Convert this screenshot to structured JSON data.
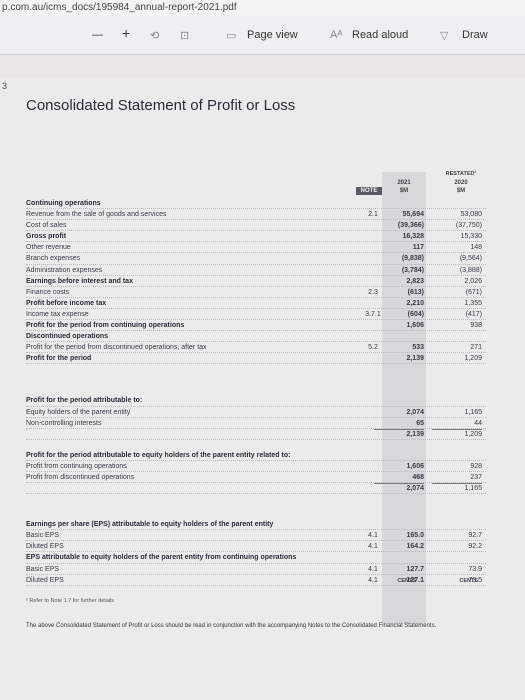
{
  "browser": {
    "url": "p.com.au/icms_docs/195984_annual-report-2021.pdf",
    "zoom_out": "—",
    "zoom_in": "+",
    "page_view": "Page view",
    "read_aloud": "Read aloud",
    "draw": "Draw"
  },
  "page_number": "3",
  "document": {
    "title": "Consolidated Statement of Profit or Loss",
    "columns": {
      "note": "NOTE",
      "current_year": "2021",
      "current_unit": "$M",
      "prior_label": "RESTATED¹",
      "prior_year": "2020",
      "prior_unit": "$M"
    },
    "sections": [
      {
        "rows": [
          {
            "kind": "heading",
            "label": "Continuing operations"
          },
          {
            "kind": "normal",
            "label": "Revenue from the sale of goods and services",
            "note": "2.1",
            "current": "55,694",
            "prior": "53,080"
          },
          {
            "kind": "normal",
            "label": "Cost of sales",
            "current": "(39,366)",
            "prior": "(37,750)"
          },
          {
            "kind": "bold",
            "label": "Gross profit",
            "current": "16,328",
            "prior": "15,330"
          },
          {
            "kind": "normal",
            "label": "Other revenue",
            "current": "117",
            "prior": "148"
          },
          {
            "kind": "normal",
            "label": "Branch expenses",
            "current": "(9,838)",
            "prior": "(9,564)"
          },
          {
            "kind": "normal",
            "label": "Administration expenses",
            "current": "(3,784)",
            "prior": "(3,888)"
          },
          {
            "kind": "bold",
            "label": "Earnings before interest and tax",
            "current": "2,823",
            "prior": "2,026"
          },
          {
            "kind": "normal",
            "label": "Finance costs",
            "note": "2.3",
            "current": "(613)",
            "prior": "(671)"
          },
          {
            "kind": "bold",
            "label": "Profit before income tax",
            "current": "2,210",
            "prior": "1,355"
          },
          {
            "kind": "normal",
            "label": "Income tax expense",
            "note": "3.7.1",
            "current": "(604)",
            "prior": "(417)"
          },
          {
            "kind": "bold",
            "label": "Profit for the period from continuing operations",
            "current": "1,606",
            "prior": "938"
          },
          {
            "kind": "heading",
            "label": "Discontinued operations"
          },
          {
            "kind": "normal",
            "label": "Profit for the period from discontinued operations, after tax",
            "note": "5.2",
            "current": "533",
            "prior": "271"
          },
          {
            "kind": "bold",
            "label": "Profit for the period",
            "current": "2,139",
            "prior": "1,209"
          }
        ]
      },
      {
        "rows": [
          {
            "kind": "heading",
            "label": "Profit for the period attributable to:"
          },
          {
            "kind": "normal",
            "label": "Equity holders of the parent entity",
            "current": "2,074",
            "prior": "1,165"
          },
          {
            "kind": "normal",
            "label": "Non-controlling interests",
            "current": "65",
            "prior": "44"
          },
          {
            "kind": "total",
            "current": "2,139",
            "prior": "1,209"
          }
        ]
      },
      {
        "rows": [
          {
            "kind": "heading",
            "label": "Profit for the period attributable to equity holders of the parent entity related to:"
          },
          {
            "kind": "normal",
            "label": "Profit from continuing operations",
            "current": "1,606",
            "prior": "928"
          },
          {
            "kind": "normal",
            "label": "Profit from discontinued operations",
            "current": "468",
            "prior": "237"
          },
          {
            "kind": "total",
            "current": "2,074",
            "prior": "1,165"
          }
        ]
      },
      {
        "units": {
          "current": "CENTS",
          "prior": "CENTS"
        },
        "rows": [
          {
            "kind": "heading",
            "label": "Earnings per share (EPS) attributable to equity holders of the parent entity"
          },
          {
            "kind": "normal",
            "label": "Basic EPS",
            "note": "4.1",
            "current": "165.0",
            "prior": "92.7"
          },
          {
            "kind": "normal",
            "label": "Diluted EPS",
            "note": "4.1",
            "current": "164.2",
            "prior": "92.2"
          },
          {
            "kind": "heading",
            "label": "EPS attributable to equity holders of the parent entity from continuing operations"
          },
          {
            "kind": "normal",
            "label": "Basic EPS",
            "note": "4.1",
            "current": "127.7",
            "prior": "73.9"
          },
          {
            "kind": "normal",
            "label": "Diluted EPS",
            "note": "4.1",
            "current": "127.1",
            "prior": "73.5"
          }
        ]
      }
    ],
    "footnote": "¹ Refer to Note 1.7 for further details",
    "closing_note": "The above Consolidated Statement of Profit or Loss should be read in conjunction with the accompanying Notes to the Consolidated Financial Statements."
  }
}
